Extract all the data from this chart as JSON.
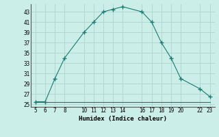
{
  "x_main": [
    5,
    6,
    7,
    8,
    10,
    11,
    12,
    13,
    14,
    16,
    17,
    18,
    19,
    20,
    22,
    23
  ],
  "y_main": [
    25.5,
    25.5,
    30,
    34,
    39,
    41,
    43,
    43.5,
    44,
    43,
    41,
    37,
    34,
    30,
    28,
    26.5
  ],
  "x_flat": [
    5,
    6,
    7,
    8,
    9,
    10,
    11,
    12,
    13,
    14,
    15,
    16,
    17,
    18,
    19,
    20,
    21,
    22,
    23
  ],
  "y_flat": [
    25.5,
    25.5,
    25.5,
    25.5,
    25.5,
    25.5,
    25.5,
    25.5,
    25.5,
    25.5,
    25.5,
    25.5,
    25.5,
    25.5,
    25.5,
    25.5,
    25.5,
    25.5,
    25.5
  ],
  "line_color": "#1a7a6e",
  "bg_color": "#cceee8",
  "grid_color": "#b0d8d0",
  "xlabel": "Humidex (Indice chaleur)",
  "xlim": [
    4.5,
    23.5
  ],
  "ylim": [
    24.5,
    44.5
  ],
  "xticks": [
    5,
    6,
    7,
    8,
    10,
    11,
    12,
    13,
    14,
    16,
    17,
    18,
    19,
    20,
    22,
    23
  ],
  "yticks": [
    25,
    27,
    29,
    31,
    33,
    35,
    37,
    39,
    41,
    43
  ]
}
